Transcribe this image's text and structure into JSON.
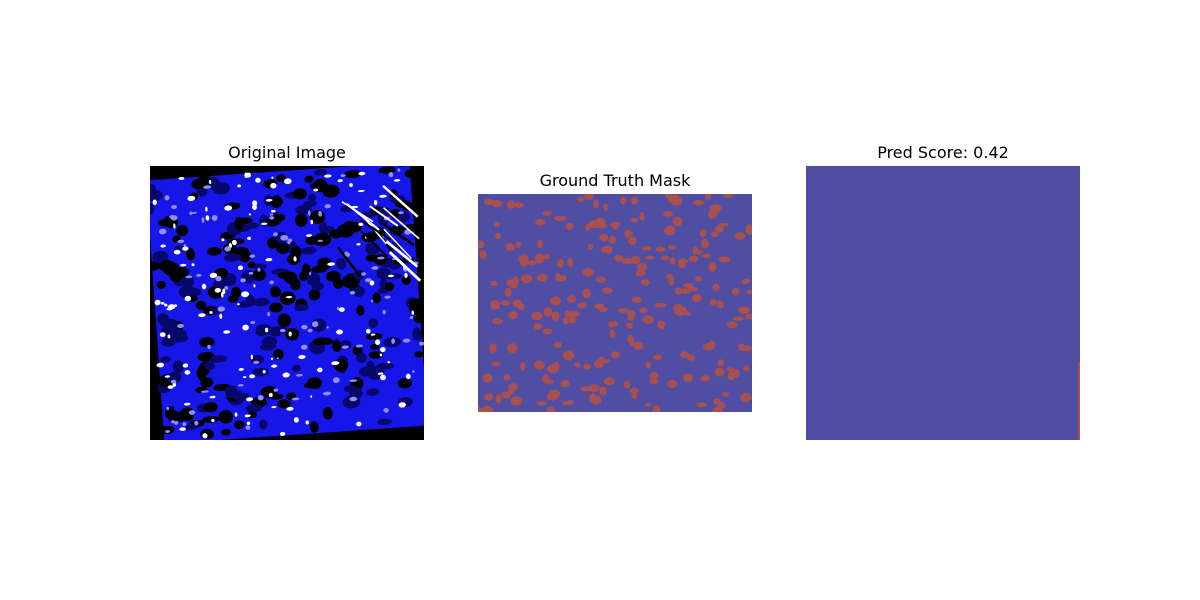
{
  "panels": {
    "original": {
      "title": "Original Image"
    },
    "ground_truth": {
      "title": "Ground Truth Mask"
    },
    "prediction": {
      "title": "Pred Score: 0.42"
    }
  },
  "colors": {
    "mask_background": "#4f4ea3",
    "mask_nucleus": "#a8504f",
    "tissue_blue": "#1010e0",
    "tissue_dark": "#000000",
    "tissue_light": "#ffffff",
    "border": "#000000"
  }
}
